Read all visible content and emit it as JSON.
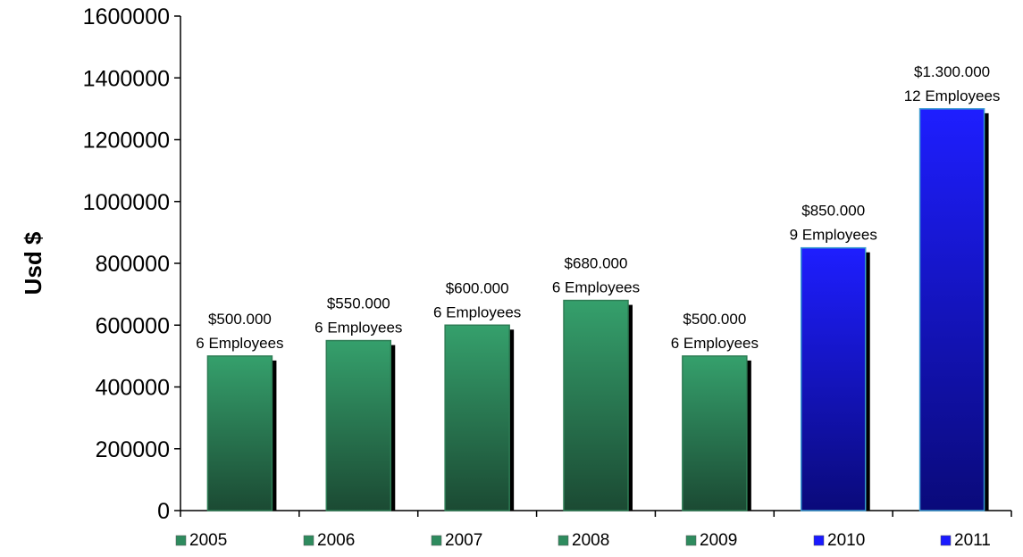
{
  "chart_data": {
    "type": "bar",
    "title": "",
    "xlabel": "",
    "ylabel": "Usd $",
    "ylim": [
      0,
      1600000
    ],
    "y_ticks": [
      "0",
      "200000",
      "400000",
      "600000",
      "800000",
      "1000000",
      "1200000",
      "1400000",
      "1600000"
    ],
    "grid": false,
    "legend_position": "bottom",
    "categories": [
      "2005",
      "2006",
      "2007",
      "2008",
      "2009",
      "2010",
      "2011"
    ],
    "values": [
      500000,
      550000,
      600000,
      680000,
      500000,
      850000,
      1300000
    ],
    "value_labels": [
      "$500.000",
      "$550.000",
      "$600.000",
      "$680.000",
      "$500.000",
      "$850.000",
      "$1.300.000"
    ],
    "employee_labels": [
      "6 Employees",
      "6 Employees",
      "6 Employees",
      "6 Employees",
      "6 Employees",
      "9 Employees",
      "12 Employees"
    ],
    "bar_colors": [
      "#2e8b5e",
      "#2e8b5e",
      "#2e8b5e",
      "#2e8b5e",
      "#2e8b5e",
      "#1a1aff",
      "#1a1aff"
    ]
  }
}
